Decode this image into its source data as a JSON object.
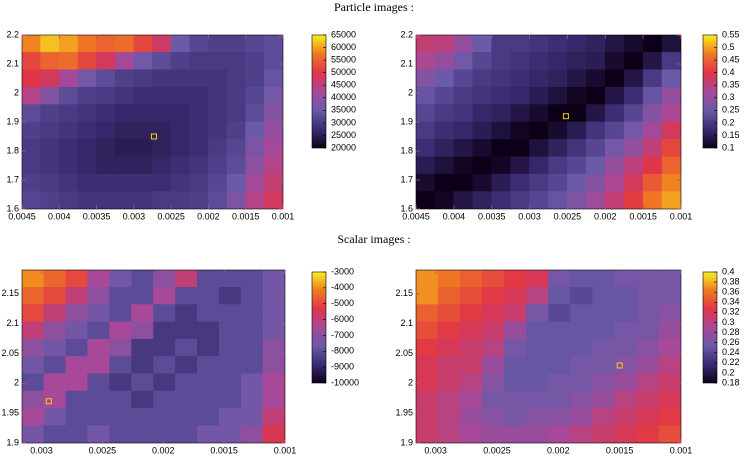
{
  "sections": [
    {
      "title": "Particle images :"
    },
    {
      "title": "Scalar images :"
    }
  ],
  "colormap": [
    "#0c0018",
    "#3a2a70",
    "#6a5aa8",
    "#a84898",
    "#e03448",
    "#f07a22",
    "#f8f020"
  ],
  "chart_data": [
    {
      "type": "heatmap",
      "xlim": [
        0.0045,
        0.001
      ],
      "ylim": [
        1.6,
        2.2
      ],
      "xticks": [
        0.0045,
        0.004,
        0.0035,
        0.003,
        0.0025,
        0.002,
        0.0015,
        0.001
      ],
      "yticks": [
        1.6,
        1.7,
        1.8,
        1.9,
        2,
        2.1,
        2.2
      ],
      "clim": [
        20000,
        65000
      ],
      "cbticks": [
        20000,
        25000,
        30000,
        35000,
        40000,
        45000,
        50000,
        55000,
        60000,
        65000
      ],
      "x": [
        0.004375,
        0.004125,
        0.003875,
        0.003625,
        0.003375,
        0.003125,
        0.002875,
        0.002625,
        0.002375,
        0.002125,
        0.001875,
        0.001625,
        0.001375,
        0.001125
      ],
      "y": [
        2.17,
        2.11,
        2.05,
        1.99,
        1.93,
        1.87,
        1.81,
        1.75,
        1.69,
        1.63
      ],
      "z": [
        [
          58000,
          62000,
          60000,
          57000,
          55000,
          56000,
          52000,
          47000,
          35000,
          32000,
          31000,
          31000,
          32000,
          33000
        ],
        [
          52000,
          55000,
          56000,
          52000,
          48000,
          42000,
          36000,
          33000,
          31000,
          30000,
          30000,
          30000,
          31000,
          33000
        ],
        [
          50000,
          48000,
          42000,
          36000,
          33000,
          31000,
          30000,
          29000,
          29000,
          29000,
          29000,
          30000,
          31000,
          34000
        ],
        [
          44000,
          38000,
          33000,
          31000,
          30000,
          29000,
          28000,
          28000,
          28000,
          28000,
          29000,
          30000,
          32000,
          36000
        ],
        [
          33000,
          31000,
          30000,
          29000,
          28000,
          27000,
          27000,
          27000,
          27000,
          28000,
          29000,
          30000,
          33000,
          38000
        ],
        [
          31000,
          30000,
          29000,
          28000,
          27000,
          26000,
          26000,
          26000,
          27000,
          28000,
          29000,
          31000,
          35000,
          40000
        ],
        [
          30000,
          29000,
          28000,
          27000,
          26000,
          25000,
          25000,
          26000,
          27000,
          28000,
          30000,
          32000,
          37000,
          42000
        ],
        [
          30000,
          29000,
          28000,
          27000,
          26000,
          26000,
          26000,
          27000,
          28000,
          29000,
          31000,
          33000,
          39000,
          44000
        ],
        [
          31000,
          30000,
          29000,
          28000,
          28000,
          28000,
          28000,
          28000,
          29000,
          30000,
          32000,
          35000,
          42000,
          46000
        ],
        [
          32000,
          31000,
          30000,
          29000,
          29000,
          29000,
          29000,
          30000,
          30000,
          31000,
          33000,
          37000,
          44000,
          48000
        ]
      ],
      "marker": {
        "x": 0.00273,
        "y": 1.85,
        "color": "#f0d020"
      }
    },
    {
      "type": "heatmap",
      "xlim": [
        0.0045,
        0.001
      ],
      "ylim": [
        1.6,
        2.2
      ],
      "xticks": [
        0.0045,
        0.004,
        0.0035,
        0.003,
        0.0025,
        0.002,
        0.0015,
        0.001
      ],
      "yticks": [
        1.6,
        1.7,
        1.8,
        1.9,
        2,
        2.1,
        2.2
      ],
      "clim": [
        0.1,
        0.55
      ],
      "cbticks": [
        0.1,
        0.15,
        0.2,
        0.25,
        0.3,
        0.35,
        0.4,
        0.45,
        0.5,
        0.55
      ],
      "x": [
        0.004375,
        0.004125,
        0.003875,
        0.003625,
        0.003375,
        0.003125,
        0.002875,
        0.002625,
        0.002375,
        0.002125,
        0.001875,
        0.001625,
        0.001375,
        0.001125
      ],
      "y": [
        2.17,
        2.11,
        2.05,
        1.99,
        1.93,
        1.87,
        1.81,
        1.75,
        1.69,
        1.63
      ],
      "z": [
        [
          0.36,
          0.35,
          0.3,
          0.25,
          0.2,
          0.2,
          0.19,
          0.18,
          0.17,
          0.16,
          0.14,
          0.12,
          0.1,
          0.13
        ],
        [
          0.33,
          0.3,
          0.26,
          0.22,
          0.2,
          0.19,
          0.18,
          0.17,
          0.16,
          0.15,
          0.12,
          0.1,
          0.14,
          0.2
        ],
        [
          0.28,
          0.25,
          0.22,
          0.2,
          0.19,
          0.18,
          0.17,
          0.16,
          0.14,
          0.12,
          0.1,
          0.14,
          0.2,
          0.25
        ],
        [
          0.24,
          0.22,
          0.2,
          0.19,
          0.18,
          0.17,
          0.15,
          0.13,
          0.11,
          0.1,
          0.14,
          0.18,
          0.24,
          0.3
        ],
        [
          0.22,
          0.2,
          0.19,
          0.17,
          0.16,
          0.14,
          0.12,
          0.1,
          0.1,
          0.14,
          0.18,
          0.22,
          0.28,
          0.33
        ],
        [
          0.2,
          0.18,
          0.17,
          0.15,
          0.13,
          0.11,
          0.1,
          0.12,
          0.15,
          0.19,
          0.22,
          0.26,
          0.32,
          0.38
        ],
        [
          0.18,
          0.16,
          0.14,
          0.12,
          0.1,
          0.1,
          0.13,
          0.16,
          0.19,
          0.22,
          0.26,
          0.3,
          0.36,
          0.42
        ],
        [
          0.15,
          0.13,
          0.11,
          0.1,
          0.11,
          0.14,
          0.17,
          0.2,
          0.22,
          0.25,
          0.3,
          0.35,
          0.4,
          0.45
        ],
        [
          0.12,
          0.1,
          0.1,
          0.12,
          0.15,
          0.18,
          0.2,
          0.22,
          0.25,
          0.28,
          0.33,
          0.38,
          0.44,
          0.48
        ],
        [
          0.1,
          0.11,
          0.14,
          0.16,
          0.18,
          0.2,
          0.22,
          0.24,
          0.27,
          0.31,
          0.36,
          0.41,
          0.47,
          0.5
        ]
      ],
      "marker": {
        "x": 0.00252,
        "y": 1.92,
        "color": "#f0d020"
      }
    },
    {
      "type": "heatmap",
      "xlim": [
        0.00316,
        0.001
      ],
      "ylim": [
        1.9,
        2.19
      ],
      "xticks": [
        0.003,
        0.0025,
        0.002,
        0.0015,
        0.001
      ],
      "yticks": [
        1.9,
        1.95,
        2,
        2.05,
        2.1,
        2.15
      ],
      "clim": [
        -10000,
        -3000
      ],
      "cbticks": [
        -10000,
        -9000,
        -8000,
        -7000,
        -6000,
        -5000,
        -4000,
        -3000
      ],
      "x": [
        0.00307,
        0.00289,
        0.00271,
        0.00253,
        0.00235,
        0.00217,
        0.00199,
        0.00181,
        0.00163,
        0.00145,
        0.00127,
        0.00109
      ],
      "y": [
        2.1755,
        2.1465,
        2.1175,
        2.0885,
        2.0595,
        2.0305,
        2.0015,
        1.9725,
        1.9435,
        1.9145
      ],
      "z": [
        [
          -4000,
          -4500,
          -5000,
          -6500,
          -7500,
          -8000,
          -7000,
          -6000,
          -8000,
          -8000,
          -8000,
          -7500
        ],
        [
          -4500,
          -5000,
          -6000,
          -7000,
          -8000,
          -8000,
          -6500,
          -8000,
          -8000,
          -8500,
          -8000,
          -7500
        ],
        [
          -5000,
          -6000,
          -7000,
          -7500,
          -8000,
          -6500,
          -8000,
          -8500,
          -8000,
          -8000,
          -8000,
          -7500
        ],
        [
          -6000,
          -7000,
          -7500,
          -8000,
          -6500,
          -7000,
          -8500,
          -8500,
          -8500,
          -8000,
          -8000,
          -7500
        ],
        [
          -7000,
          -7500,
          -8000,
          -6500,
          -7000,
          -8500,
          -8500,
          -8000,
          -8500,
          -8000,
          -8000,
          -7000
        ],
        [
          -7500,
          -8000,
          -6500,
          -6500,
          -8000,
          -8500,
          -8000,
          -8500,
          -8000,
          -8000,
          -8000,
          -7000
        ],
        [
          -8000,
          -6500,
          -6500,
          -8000,
          -8500,
          -8000,
          -8500,
          -8000,
          -8000,
          -8000,
          -7500,
          -6500
        ],
        [
          -7000,
          -6500,
          -8000,
          -8000,
          -8000,
          -8500,
          -8000,
          -8000,
          -8000,
          -8000,
          -7500,
          -6500
        ],
        [
          -6500,
          -7500,
          -8000,
          -8000,
          -8000,
          -8000,
          -8000,
          -8000,
          -8000,
          -7500,
          -7500,
          -6000
        ],
        [
          -7500,
          -8000,
          -8000,
          -7500,
          -8000,
          -8000,
          -8000,
          -8000,
          -7500,
          -7500,
          -7000,
          -5500
        ]
      ],
      "marker": {
        "x": 0.00294,
        "y": 1.97,
        "color": "#f0d020"
      }
    },
    {
      "type": "heatmap",
      "xlim": [
        0.00316,
        0.001
      ],
      "ylim": [
        1.9,
        2.19
      ],
      "xticks": [
        0.003,
        0.0025,
        0.002,
        0.0015,
        0.001
      ],
      "yticks": [
        1.9,
        1.95,
        2,
        2.05,
        2.1,
        2.15
      ],
      "clim": [
        0.18,
        0.4
      ],
      "cbticks": [
        0.18,
        0.2,
        0.22,
        0.24,
        0.26,
        0.28,
        0.3,
        0.32,
        0.34,
        0.36,
        0.38,
        0.4
      ],
      "x": [
        0.00307,
        0.00289,
        0.00271,
        0.00253,
        0.00235,
        0.00217,
        0.00199,
        0.00181,
        0.00163,
        0.00145,
        0.00127,
        0.00109
      ],
      "y": [
        2.1755,
        2.1465,
        2.1175,
        2.0885,
        2.0595,
        2.0305,
        2.0015,
        1.9725,
        1.9435,
        1.9145
      ],
      "z": [
        [
          0.37,
          0.36,
          0.35,
          0.34,
          0.33,
          0.32,
          0.26,
          0.25,
          0.25,
          0.26,
          0.26,
          0.26
        ],
        [
          0.37,
          0.35,
          0.34,
          0.33,
          0.32,
          0.3,
          0.25,
          0.24,
          0.25,
          0.25,
          0.26,
          0.26
        ],
        [
          0.35,
          0.34,
          0.33,
          0.32,
          0.31,
          0.26,
          0.24,
          0.25,
          0.25,
          0.25,
          0.26,
          0.27
        ],
        [
          0.34,
          0.33,
          0.32,
          0.31,
          0.28,
          0.25,
          0.25,
          0.25,
          0.25,
          0.26,
          0.26,
          0.28
        ],
        [
          0.33,
          0.32,
          0.31,
          0.3,
          0.26,
          0.25,
          0.25,
          0.25,
          0.26,
          0.26,
          0.27,
          0.29
        ],
        [
          0.32,
          0.31,
          0.31,
          0.28,
          0.25,
          0.25,
          0.25,
          0.26,
          0.26,
          0.27,
          0.28,
          0.3
        ],
        [
          0.32,
          0.31,
          0.3,
          0.27,
          0.25,
          0.25,
          0.26,
          0.26,
          0.27,
          0.28,
          0.3,
          0.31
        ],
        [
          0.31,
          0.3,
          0.29,
          0.26,
          0.26,
          0.26,
          0.26,
          0.27,
          0.28,
          0.3,
          0.31,
          0.32
        ],
        [
          0.31,
          0.3,
          0.28,
          0.27,
          0.26,
          0.27,
          0.27,
          0.28,
          0.3,
          0.31,
          0.32,
          0.33
        ],
        [
          0.31,
          0.3,
          0.29,
          0.28,
          0.28,
          0.28,
          0.29,
          0.3,
          0.31,
          0.32,
          0.33,
          0.34
        ]
      ],
      "marker": {
        "x": 0.0015,
        "y": 2.03,
        "color": "#f0d020"
      }
    }
  ]
}
